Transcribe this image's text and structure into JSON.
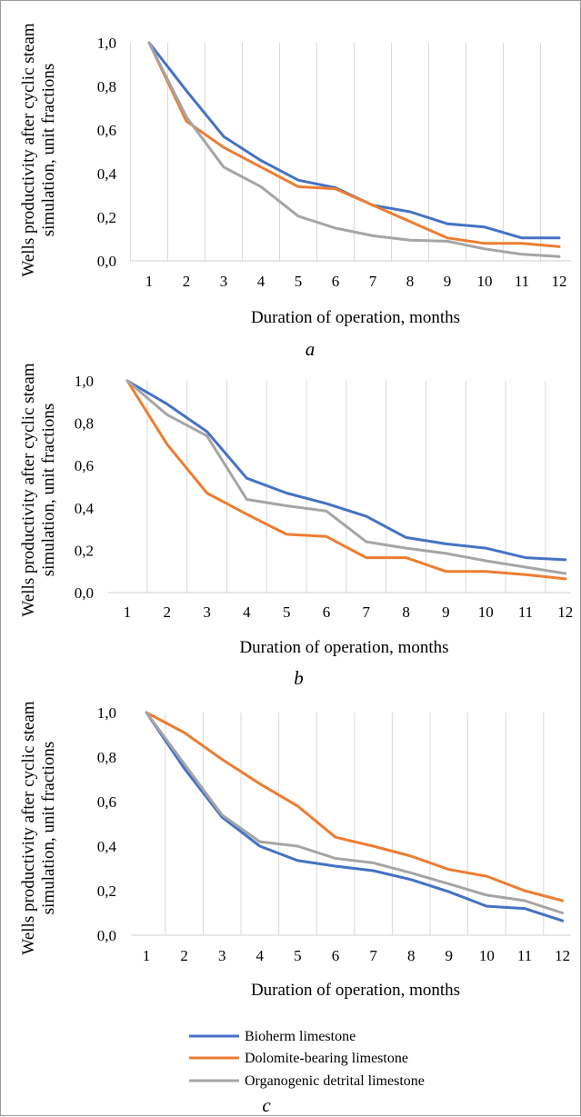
{
  "figure": {
    "legend": [
      {
        "label": "Bioherm limestone",
        "color": "#4472C4"
      },
      {
        "label": "Dolomite-bearing limestone",
        "color": "#ED7D31"
      },
      {
        "label": "Organogenic detrital limestone",
        "color": "#A5A5A5"
      }
    ]
  },
  "chart_data": [
    {
      "type": "line",
      "panel_label": "a",
      "xlabel": "Duration of operation, months",
      "ylabel_lines": [
        "Wells productivity after cyclic steam",
        "simulation, unit fractions"
      ],
      "x": [
        1,
        2,
        3,
        4,
        5,
        6,
        7,
        8,
        9,
        10,
        11,
        12
      ],
      "x_tick_labels": [
        "1",
        "2",
        "3",
        "4",
        "5",
        "6",
        "7",
        "8",
        "9",
        "10",
        "11",
        "12"
      ],
      "y_tick_labels": [
        "0,0",
        "0,2",
        "0,4",
        "0,6",
        "0,8",
        "1,0"
      ],
      "ylim": [
        0,
        1
      ],
      "grid": "vertical",
      "series": [
        {
          "name": "Bioherm limestone",
          "color": "#4472C4",
          "values": [
            1.0,
            0.78,
            0.57,
            0.46,
            0.37,
            0.335,
            0.255,
            0.225,
            0.17,
            0.155,
            0.105,
            0.105
          ]
        },
        {
          "name": "Dolomite-bearing limestone",
          "color": "#ED7D31",
          "values": [
            1.0,
            0.64,
            0.52,
            0.43,
            0.34,
            0.33,
            0.255,
            0.18,
            0.105,
            0.08,
            0.08,
            0.065
          ]
        },
        {
          "name": "Organogenic detrital limestone",
          "color": "#A5A5A5",
          "values": [
            1.0,
            0.66,
            0.43,
            0.34,
            0.205,
            0.15,
            0.115,
            0.095,
            0.09,
            0.055,
            0.03,
            0.02
          ]
        }
      ]
    },
    {
      "type": "line",
      "panel_label": "b",
      "xlabel": "Duration of operation, months",
      "ylabel_lines": [
        "Wells productivity after cyclic steam",
        "simulation, unit fractions"
      ],
      "x": [
        1,
        2,
        3,
        4,
        5,
        6,
        7,
        8,
        9,
        10,
        11,
        12
      ],
      "x_tick_labels": [
        "1",
        "2",
        "3",
        "4",
        "5",
        "6",
        "7",
        "8",
        "9",
        "10",
        "11",
        "12"
      ],
      "y_tick_labels": [
        "0,0",
        "0,2",
        "0,4",
        "0,6",
        "0,8",
        "1,0"
      ],
      "ylim": [
        0,
        1
      ],
      "grid": "vertical",
      "series": [
        {
          "name": "Bioherm limestone",
          "color": "#4472C4",
          "values": [
            1.0,
            0.89,
            0.76,
            0.54,
            0.47,
            0.42,
            0.36,
            0.26,
            0.23,
            0.21,
            0.165,
            0.155
          ]
        },
        {
          "name": "Dolomite-bearing limestone",
          "color": "#ED7D31",
          "values": [
            1.0,
            0.7,
            0.47,
            0.37,
            0.275,
            0.265,
            0.165,
            0.165,
            0.1,
            0.1,
            0.085,
            0.065
          ]
        },
        {
          "name": "Organogenic detrital limestone",
          "color": "#A5A5A5",
          "values": [
            1.0,
            0.84,
            0.74,
            0.44,
            0.41,
            0.385,
            0.24,
            0.21,
            0.185,
            0.15,
            0.12,
            0.09
          ]
        }
      ]
    },
    {
      "type": "line",
      "panel_label": "c",
      "xlabel": "Duration of operation, months",
      "ylabel_lines": [
        "Wells productivity after cyclic steam",
        "simulation, unit fractions"
      ],
      "x": [
        1,
        2,
        3,
        4,
        5,
        6,
        7,
        8,
        9,
        10,
        11,
        12
      ],
      "x_tick_labels": [
        "1",
        "2",
        "3",
        "4",
        "5",
        "6",
        "7",
        "8",
        "9",
        "10",
        "11",
        "12"
      ],
      "y_tick_labels": [
        "0,0",
        "0,2",
        "0,4",
        "0,6",
        "0,8",
        "1,0"
      ],
      "ylim": [
        0,
        1
      ],
      "grid": "vertical",
      "series": [
        {
          "name": "Bioherm limestone",
          "color": "#4472C4",
          "values": [
            1.0,
            0.75,
            0.53,
            0.4,
            0.335,
            0.31,
            0.29,
            0.25,
            0.195,
            0.13,
            0.12,
            0.065
          ]
        },
        {
          "name": "Dolomite-bearing limestone",
          "color": "#ED7D31",
          "values": [
            1.0,
            0.91,
            0.79,
            0.68,
            0.58,
            0.44,
            0.4,
            0.355,
            0.295,
            0.265,
            0.2,
            0.155
          ]
        },
        {
          "name": "Organogenic detrital limestone",
          "color": "#A5A5A5",
          "values": [
            1.0,
            0.77,
            0.54,
            0.42,
            0.4,
            0.345,
            0.325,
            0.28,
            0.23,
            0.18,
            0.155,
            0.1
          ]
        }
      ]
    }
  ]
}
